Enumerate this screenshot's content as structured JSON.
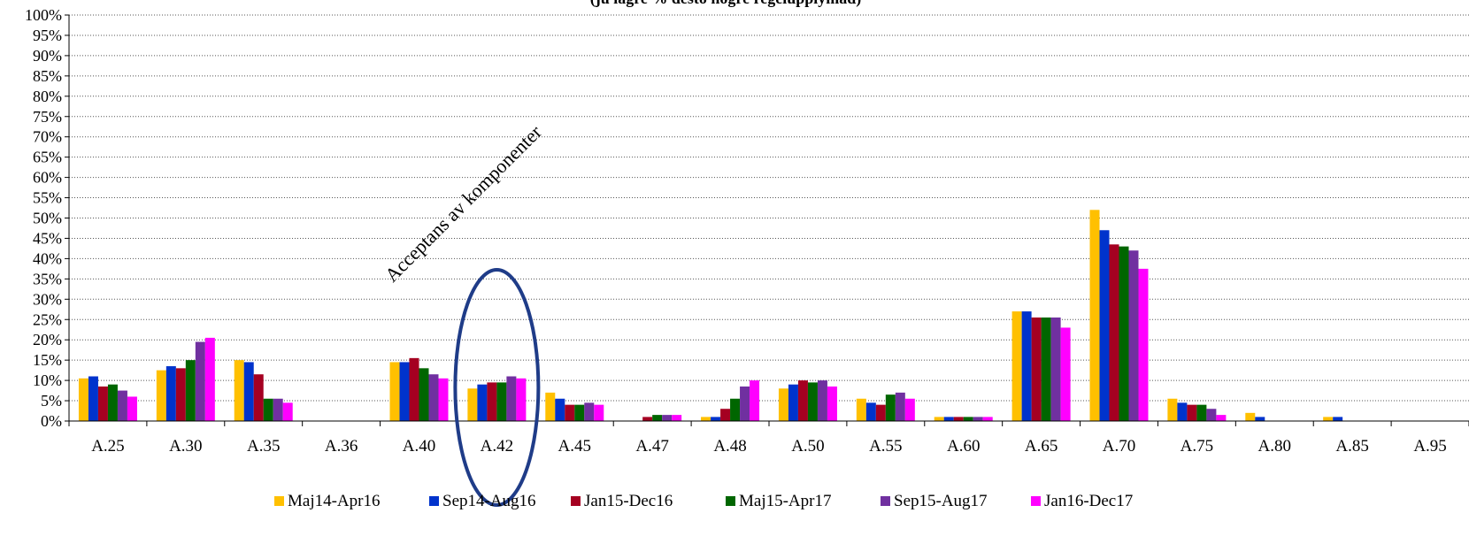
{
  "chart_data": {
    "type": "bar",
    "title": "(ju lägre % desto högre regelupplymad)",
    "xlabel": "",
    "ylabel": "",
    "ylim": [
      0,
      100
    ],
    "yticks": [
      "0%",
      "5%",
      "10%",
      "15%",
      "20%",
      "25%",
      "30%",
      "35%",
      "40%",
      "45%",
      "50%",
      "55%",
      "60%",
      "65%",
      "70%",
      "75%",
      "80%",
      "85%",
      "90%",
      "95%",
      "100%"
    ],
    "grid": "horizontal dotted",
    "legend_position": "bottom",
    "categories": [
      "A.25",
      "A.30",
      "A.35",
      "A.36",
      "A.40",
      "A.42",
      "A.45",
      "A.47",
      "A.48",
      "A.50",
      "A.55",
      "A.60",
      "A.65",
      "A.70",
      "A.75",
      "A.80",
      "A.85",
      "A.95"
    ],
    "series": [
      {
        "name": "Maj14-Apr16",
        "color": "#FFC000",
        "values": [
          10.5,
          12.5,
          15,
          0,
          14.5,
          8,
          7,
          0,
          1,
          8,
          5.5,
          1,
          27,
          52,
          5.5,
          2,
          1,
          0
        ]
      },
      {
        "name": "Sep14-Aug16",
        "color": "#0033CC",
        "values": [
          11,
          13.5,
          14.5,
          0,
          14.5,
          9,
          5.5,
          0,
          1,
          9,
          4.5,
          1,
          27,
          47,
          4.5,
          1,
          1,
          0
        ]
      },
      {
        "name": "Jan15-Dec16",
        "color": "#A50021",
        "values": [
          8.5,
          13,
          11.5,
          0,
          15.5,
          9.5,
          4,
          1,
          3,
          10,
          4,
          1,
          25.5,
          43.5,
          4,
          0,
          0,
          0
        ]
      },
      {
        "name": "Maj15-Apr17",
        "color": "#006600",
        "values": [
          9,
          15,
          5.5,
          0,
          13,
          9.5,
          4,
          1.5,
          5.5,
          9.5,
          6.5,
          1,
          25.5,
          43,
          4,
          0,
          0,
          0
        ]
      },
      {
        "name": "Sep15-Aug17",
        "color": "#7030A0",
        "values": [
          7.5,
          19.5,
          5.5,
          0,
          11.5,
          11,
          4.5,
          1.5,
          8.5,
          10,
          7,
          1,
          25.5,
          42,
          3,
          0,
          0,
          0
        ]
      },
      {
        "name": "Jan16-Dec17",
        "color": "#FF00FF",
        "values": [
          6,
          20.5,
          4.5,
          0,
          10.5,
          10.5,
          4,
          1.5,
          10,
          8.5,
          5.5,
          1,
          23,
          37.5,
          1.5,
          0,
          0,
          0
        ]
      }
    ],
    "annotations": [
      {
        "text": "Acceptans av komponenter",
        "target": "A.42",
        "style": "rotated text with ellipse highlight around A.42"
      }
    ]
  }
}
